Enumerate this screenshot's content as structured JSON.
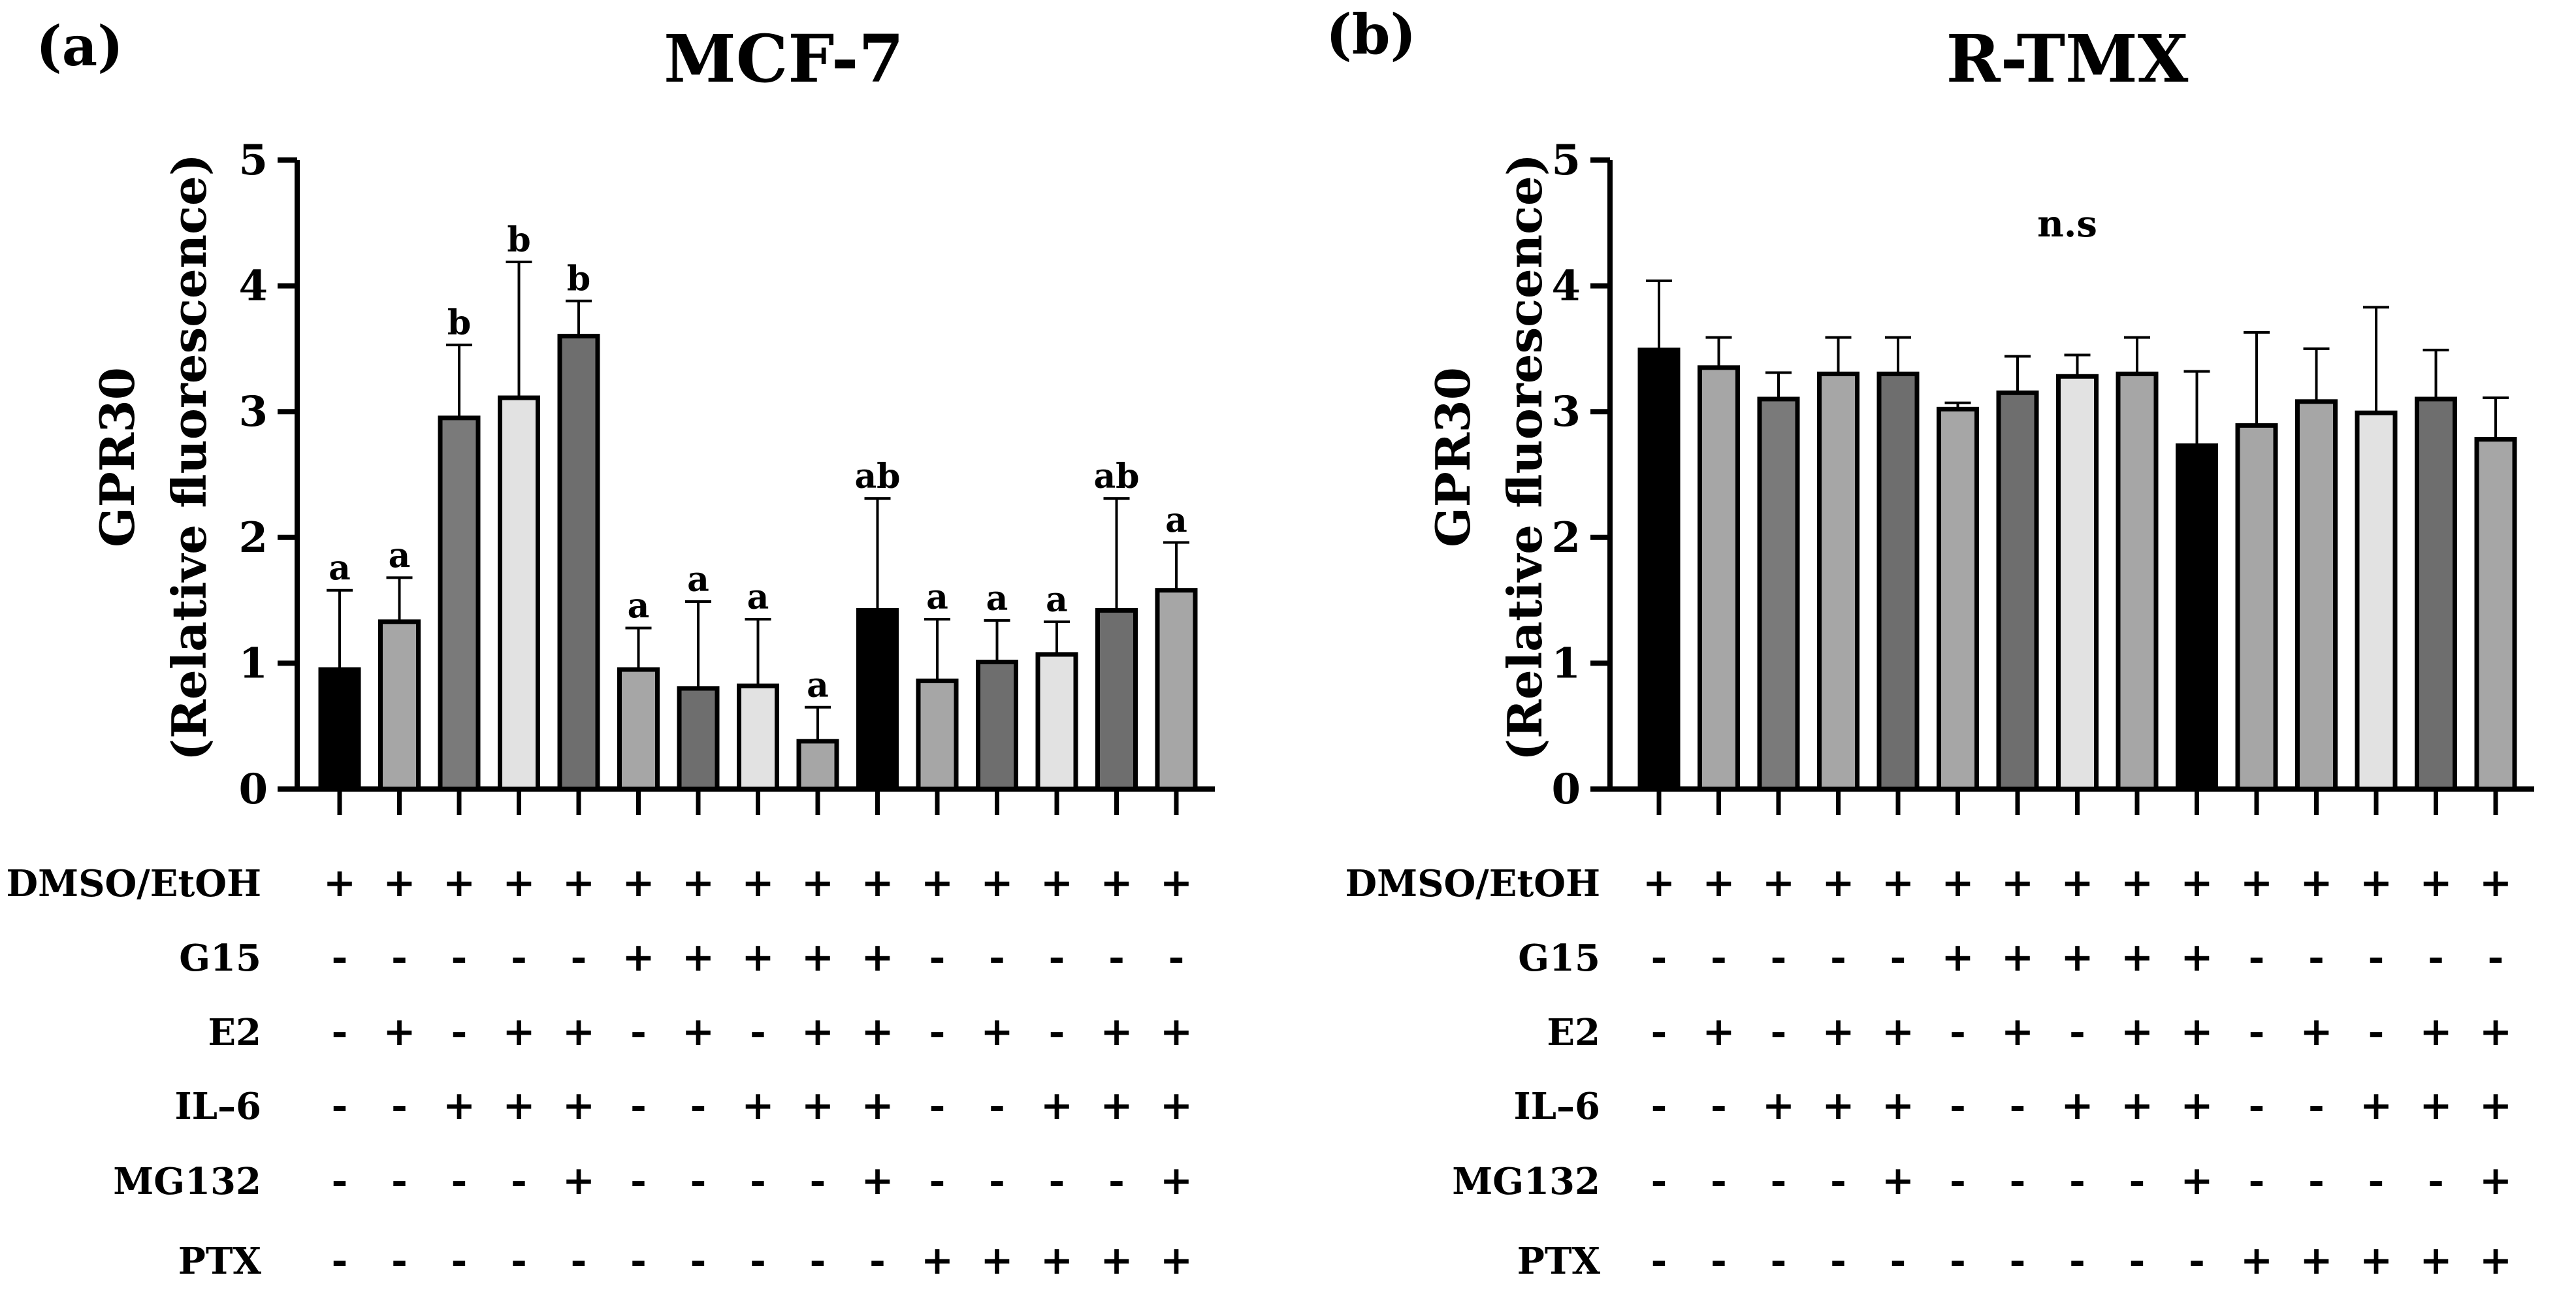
{
  "chart_data": [
    {
      "type": "bar",
      "panel_label": "(a)",
      "title": "MCF-7",
      "ylabel_line1": "GPR30",
      "ylabel_line2": "(Relative fluorescence)",
      "ylim": [
        0,
        5
      ],
      "yticks": [
        "0",
        "1",
        "2",
        "3",
        "4",
        "5"
      ],
      "grid": false,
      "values": [
        0.95,
        1.33,
        2.95,
        3.11,
        3.6,
        0.95,
        0.8,
        0.82,
        0.38,
        1.42,
        0.86,
        1.01,
        1.07,
        1.42,
        1.58
      ],
      "errors": [
        0.63,
        0.35,
        0.58,
        1.08,
        0.28,
        0.33,
        0.69,
        0.53,
        0.27,
        0.89,
        0.49,
        0.33,
        0.26,
        0.89,
        0.38
      ],
      "significance": [
        "a",
        "a",
        "b",
        "b",
        "b",
        "a",
        "a",
        "a",
        "a",
        "ab",
        "a",
        "a",
        "a",
        "ab",
        "a"
      ],
      "bar_colors": [
        "#000000",
        "#a6a6a6",
        "#7a7a7a",
        "#e2e2e2",
        "#6e6e6e",
        "#a6a6a6",
        "#6e6e6e",
        "#e2e2e2",
        "#a6a6a6",
        "#000000",
        "#a6a6a6",
        "#6e6e6e",
        "#e2e2e2",
        "#6e6e6e",
        "#a6a6a6"
      ],
      "treatments": [
        {
          "label": "DMSO/EtOH",
          "marks": [
            "+",
            "+",
            "+",
            "+",
            "+",
            "+",
            "+",
            "+",
            "+",
            "+",
            "+",
            "+",
            "+",
            "+",
            "+"
          ]
        },
        {
          "label": "G15",
          "marks": [
            "-",
            "-",
            "-",
            "-",
            "-",
            "+",
            "+",
            "+",
            "+",
            "+",
            "-",
            "-",
            "-",
            "-",
            "-"
          ]
        },
        {
          "label": "E2",
          "marks": [
            "-",
            "+",
            "-",
            "+",
            "+",
            "-",
            "+",
            "-",
            "+",
            "+",
            "-",
            "+",
            "-",
            "+",
            "+"
          ]
        },
        {
          "label": "IL–6",
          "marks": [
            "-",
            "-",
            "+",
            "+",
            "+",
            "-",
            "-",
            "+",
            "+",
            "+",
            "-",
            "-",
            "+",
            "+",
            "+"
          ]
        },
        {
          "label": "MG132",
          "marks": [
            "-",
            "-",
            "-",
            "-",
            "+",
            "-",
            "-",
            "-",
            "-",
            "+",
            "-",
            "-",
            "-",
            "-",
            "+"
          ]
        },
        {
          "label": "PTX",
          "marks": [
            "-",
            "-",
            "-",
            "-",
            "-",
            "-",
            "-",
            "-",
            "-",
            "-",
            "+",
            "+",
            "+",
            "+",
            "+"
          ]
        }
      ]
    },
    {
      "type": "bar",
      "panel_label": "(b)",
      "title": "R-TMX",
      "ylabel_line1": "GPR30",
      "ylabel_line2": "(Relative fluorescence)",
      "ylim": [
        0,
        5
      ],
      "yticks": [
        "0",
        "1",
        "2",
        "3",
        "4",
        "5"
      ],
      "grid": false,
      "annotation": "n.s",
      "values": [
        3.49,
        3.35,
        3.1,
        3.3,
        3.3,
        3.02,
        3.15,
        3.28,
        3.3,
        2.73,
        2.89,
        3.08,
        2.99,
        3.1,
        2.78
      ],
      "errors": [
        0.55,
        0.24,
        0.21,
        0.29,
        0.29,
        0.05,
        0.29,
        0.17,
        0.29,
        0.59,
        0.74,
        0.42,
        0.84,
        0.39,
        0.33
      ],
      "bar_colors": [
        "#000000",
        "#a6a6a6",
        "#7a7a7a",
        "#a6a6a6",
        "#6e6e6e",
        "#a6a6a6",
        "#6e6e6e",
        "#e2e2e2",
        "#a6a6a6",
        "#000000",
        "#a6a6a6",
        "#a6a6a6",
        "#e2e2e2",
        "#6e6e6e",
        "#a6a6a6"
      ],
      "treatments": [
        {
          "label": "DMSO/EtOH",
          "marks": [
            "+",
            "+",
            "+",
            "+",
            "+",
            "+",
            "+",
            "+",
            "+",
            "+",
            "+",
            "+",
            "+",
            "+",
            "+"
          ]
        },
        {
          "label": "G15",
          "marks": [
            "-",
            "-",
            "-",
            "-",
            "-",
            "+",
            "+",
            "+",
            "+",
            "+",
            "-",
            "-",
            "-",
            "-",
            "-"
          ]
        },
        {
          "label": "E2",
          "marks": [
            "-",
            "+",
            "-",
            "+",
            "+",
            "-",
            "+",
            "-",
            "+",
            "+",
            "-",
            "+",
            "-",
            "+",
            "+"
          ]
        },
        {
          "label": "IL–6",
          "marks": [
            "-",
            "-",
            "+",
            "+",
            "+",
            "-",
            "-",
            "+",
            "+",
            "+",
            "-",
            "-",
            "+",
            "+",
            "+"
          ]
        },
        {
          "label": "MG132",
          "marks": [
            "-",
            "-",
            "-",
            "-",
            "+",
            "-",
            "-",
            "-",
            "-",
            "+",
            "-",
            "-",
            "-",
            "-",
            "+"
          ]
        },
        {
          "label": "PTX",
          "marks": [
            "-",
            "-",
            "-",
            "-",
            "-",
            "-",
            "-",
            "-",
            "-",
            "-",
            "+",
            "+",
            "+",
            "+",
            "+"
          ]
        }
      ]
    }
  ]
}
